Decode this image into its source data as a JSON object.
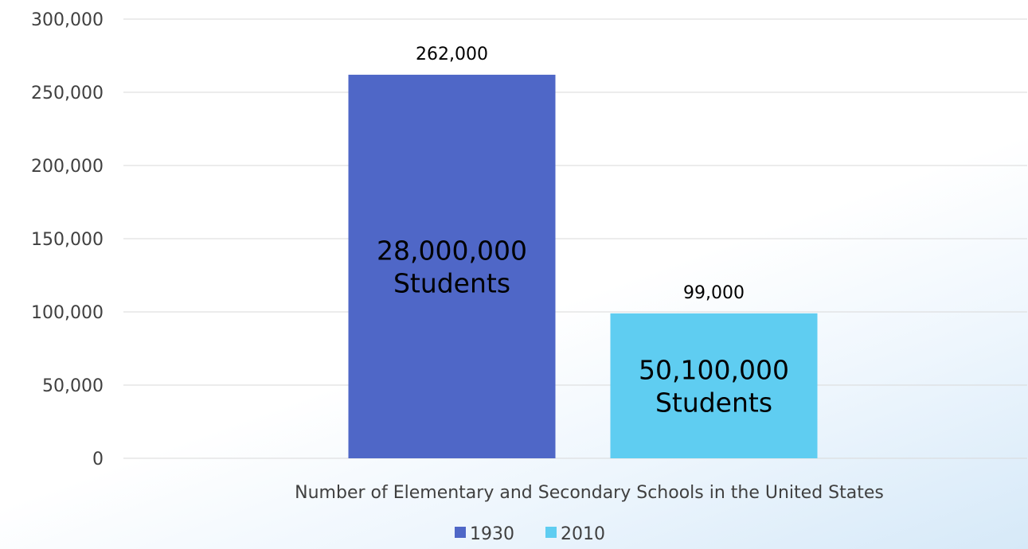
{
  "chart_data": {
    "type": "bar",
    "title": "",
    "xlabel": "",
    "ylabel": "",
    "categories": [
      "Number of Elementary and Secondary Schools in the United States"
    ],
    "series": [
      {
        "name": "1930",
        "values": [
          262000
        ],
        "color": "#4F67C7",
        "data_label": "262,000",
        "inner_label": [
          "28,000,000",
          "Students"
        ]
      },
      {
        "name": "2010",
        "values": [
          99000
        ],
        "color": "#5FCDF1",
        "data_label": "99,000",
        "inner_label": [
          "50,100,000",
          "Students"
        ]
      }
    ],
    "ylim": [
      0,
      300000
    ],
    "y_ticks": [
      0,
      50000,
      100000,
      150000,
      200000,
      250000,
      300000
    ],
    "y_tick_labels": [
      "0",
      "50,000",
      "100,000",
      "150,000",
      "200,000",
      "250,000",
      "300,000"
    ],
    "grid": true,
    "legend_position": "bottom"
  }
}
